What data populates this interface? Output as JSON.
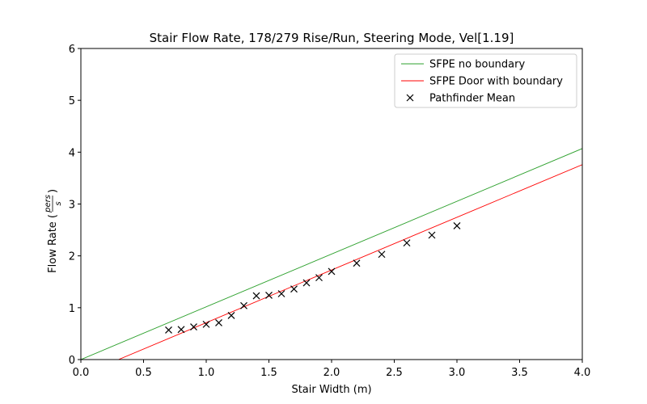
{
  "chart_data": {
    "type": "line",
    "title": "Stair Flow Rate, 178/279 Rise/Run, Steering Mode, Vel[1.19]",
    "xlabel": "Stair Width (m)",
    "ylabel": "Flow Rate (",
    "ylabel_unit_num": "pers",
    "ylabel_unit_den": "s",
    "ylabel_close": ")",
    "xlim": [
      0,
      4
    ],
    "ylim": [
      0,
      6
    ],
    "x_ticks": [
      "0.0",
      "0.5",
      "1.0",
      "1.5",
      "2.0",
      "2.5",
      "3.0",
      "3.5",
      "4.0"
    ],
    "y_ticks": [
      "0",
      "1",
      "2",
      "3",
      "4",
      "5",
      "6"
    ],
    "grid": false,
    "legend_position": "top-right",
    "series": [
      {
        "name": "SFPE no boundary",
        "kind": "line",
        "color": "#2ca02c",
        "x": [
          0,
          4
        ],
        "y": [
          0,
          4.07
        ]
      },
      {
        "name": "SFPE Door with boundary",
        "kind": "line",
        "color": "#ff0000",
        "x": [
          0.3,
          4
        ],
        "y": [
          0,
          3.76
        ]
      },
      {
        "name": "Pathfinder Mean",
        "kind": "scatter",
        "marker": "x",
        "color": "#000000",
        "x": [
          0.7,
          0.8,
          0.9,
          1.0,
          1.1,
          1.2,
          1.3,
          1.4,
          1.5,
          1.6,
          1.7,
          1.8,
          1.9,
          2.0,
          2.2,
          2.4,
          2.6,
          2.8,
          3.0
        ],
        "y": [
          0.57,
          0.58,
          0.63,
          0.68,
          0.71,
          0.85,
          1.04,
          1.23,
          1.24,
          1.27,
          1.36,
          1.48,
          1.58,
          1.7,
          1.86,
          2.03,
          2.25,
          2.4,
          2.58
        ]
      }
    ]
  }
}
